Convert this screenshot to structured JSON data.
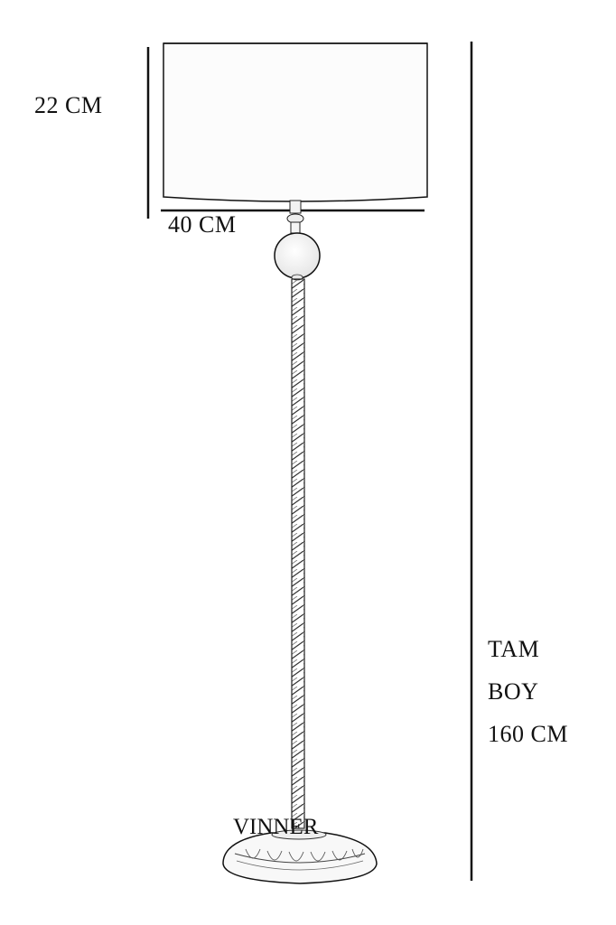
{
  "dimensions": {
    "shade_height": "22 CM",
    "shade_width": "40 CM",
    "total_height_line1": "TAM",
    "total_height_line2": "BOY",
    "total_height_line3": "160 CM"
  },
  "brand": "VINNER",
  "colors": {
    "line": "#111111",
    "background": "#ffffff",
    "shade_fill": "#fcfcfc"
  }
}
